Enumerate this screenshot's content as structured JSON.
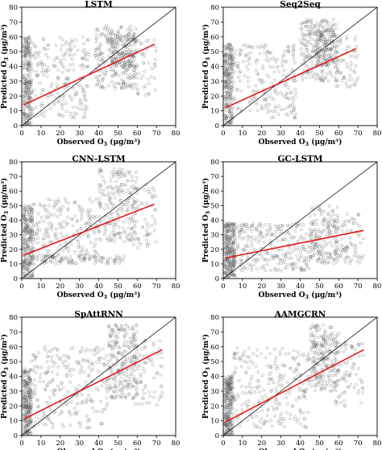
{
  "chart_data": [
    {
      "type": "scatter",
      "title": "LSTM",
      "xlabel": "Observed O",
      "ylabel": "Predicted O",
      "xlabel_sub": "3",
      "ylabel_sub": "3",
      "unit": "(μg/m³)",
      "xlim": [
        0,
        80
      ],
      "ylim": [
        0,
        80
      ],
      "xticks": [
        0,
        10,
        20,
        30,
        40,
        50,
        60,
        70,
        80
      ],
      "yticks": [
        0,
        10,
        20,
        30,
        40,
        50,
        60,
        70,
        80
      ],
      "identity_line": [
        [
          0,
          0
        ],
        [
          80,
          80
        ]
      ],
      "regression_line": [
        [
          1,
          14
        ],
        [
          69,
          55
        ]
      ],
      "regression_color": "#e31a1c",
      "point_color": "#555555",
      "scatter_clusters": [
        {
          "x": [
            0.5,
            5
          ],
          "y": [
            0,
            60
          ],
          "n": 260
        },
        {
          "x": [
            5,
            35
          ],
          "y": [
            5,
            60
          ],
          "n": 220
        },
        {
          "x": [
            38,
            60
          ],
          "y": [
            25,
            68
          ],
          "n": 240
        },
        {
          "x": [
            45,
            58
          ],
          "y": [
            40,
            62
          ],
          "n": 120
        },
        {
          "x": [
            55,
            70
          ],
          "y": [
            20,
            60
          ],
          "n": 60
        }
      ]
    },
    {
      "type": "scatter",
      "title": "Seq2Seq",
      "xlabel": "Observed O",
      "ylabel": "Predicted O",
      "xlabel_sub": "3",
      "ylabel_sub": "3",
      "unit": "(μg/m³)",
      "xlim": [
        0,
        80
      ],
      "ylim": [
        0,
        80
      ],
      "xticks": [
        0,
        10,
        20,
        30,
        40,
        50,
        60,
        70,
        80
      ],
      "yticks": [
        0,
        10,
        20,
        30,
        40,
        50,
        60,
        70,
        80
      ],
      "identity_line": [
        [
          0,
          0
        ],
        [
          80,
          80
        ]
      ],
      "regression_line": [
        [
          1,
          12
        ],
        [
          69,
          52
        ]
      ],
      "regression_color": "#e31a1c",
      "point_color": "#555555",
      "scatter_clusters": [
        {
          "x": [
            0.5,
            5
          ],
          "y": [
            0,
            55
          ],
          "n": 260
        },
        {
          "x": [
            5,
            38
          ],
          "y": [
            5,
            55
          ],
          "n": 220
        },
        {
          "x": [
            40,
            60
          ],
          "y": [
            30,
            72
          ],
          "n": 240
        },
        {
          "x": [
            48,
            58
          ],
          "y": [
            40,
            65
          ],
          "n": 120
        },
        {
          "x": [
            58,
            70
          ],
          "y": [
            25,
            60
          ],
          "n": 60
        }
      ]
    },
    {
      "type": "scatter",
      "title": "CNN-LSTM",
      "xlabel": "Observed O",
      "ylabel": "Predicted O",
      "xlabel_sub": "3",
      "ylabel_sub": "3",
      "unit": "(μg/m³)",
      "xlim": [
        0,
        80
      ],
      "ylim": [
        0,
        80
      ],
      "xticks": [
        0,
        10,
        20,
        30,
        40,
        50,
        60,
        70,
        80
      ],
      "yticks": [
        0,
        10,
        20,
        30,
        40,
        50,
        60,
        70,
        80
      ],
      "identity_line": [
        [
          0,
          0
        ],
        [
          80,
          80
        ]
      ],
      "regression_line": [
        [
          1,
          16
        ],
        [
          69,
          51
        ]
      ],
      "regression_color": "#e31a1c",
      "point_color": "#555555",
      "scatter_clusters": [
        {
          "x": [
            0.5,
            6
          ],
          "y": [
            0,
            50
          ],
          "n": 260
        },
        {
          "x": [
            5,
            40
          ],
          "y": [
            10,
            55
          ],
          "n": 240
        },
        {
          "x": [
            10,
            55
          ],
          "y": [
            10,
            16
          ],
          "n": 80
        },
        {
          "x": [
            40,
            60
          ],
          "y": [
            25,
            75
          ],
          "n": 220
        },
        {
          "x": [
            58,
            70
          ],
          "y": [
            20,
            65
          ],
          "n": 60
        }
      ]
    },
    {
      "type": "scatter",
      "title": "GC-LSTM",
      "xlabel": "Observed O",
      "ylabel": "Predicted O",
      "xlabel_sub": "3",
      "ylabel_sub": "3",
      "unit": "(μg/m³)",
      "xlim": [
        0,
        80
      ],
      "ylim": [
        0,
        80
      ],
      "xticks": [
        0,
        10,
        20,
        30,
        40,
        50,
        60,
        70,
        80
      ],
      "yticks": [
        0,
        10,
        20,
        30,
        40,
        50,
        60,
        70,
        80
      ],
      "identity_line": [
        [
          0,
          0
        ],
        [
          80,
          80
        ]
      ],
      "regression_line": [
        [
          1,
          14
        ],
        [
          73,
          33
        ]
      ],
      "regression_color": "#e31a1c",
      "point_color": "#555555",
      "scatter_clusters": [
        {
          "x": [
            0.5,
            6
          ],
          "y": [
            0,
            38
          ],
          "n": 280
        },
        {
          "x": [
            5,
            45
          ],
          "y": [
            5,
            38
          ],
          "n": 280
        },
        {
          "x": [
            45,
            60
          ],
          "y": [
            10,
            50
          ],
          "n": 180
        },
        {
          "x": [
            58,
            73
          ],
          "y": [
            10,
            45
          ],
          "n": 80
        }
      ]
    },
    {
      "type": "scatter",
      "title": "SpAttRNN",
      "xlabel": "Observed O",
      "ylabel": "Predicted O",
      "xlabel_sub": "3",
      "ylabel_sub": "3",
      "unit": "(μg/m³)",
      "xlim": [
        0,
        80
      ],
      "ylim": [
        0,
        80
      ],
      "xticks": [
        0,
        10,
        20,
        30,
        40,
        50,
        60,
        70,
        80
      ],
      "yticks": [
        0,
        10,
        20,
        30,
        40,
        50,
        60,
        70,
        80
      ],
      "identity_line": [
        [
          0,
          0
        ],
        [
          80,
          80
        ]
      ],
      "regression_line": [
        [
          1,
          11
        ],
        [
          73,
          58
        ]
      ],
      "regression_color": "#e31a1c",
      "point_color": "#555555",
      "scatter_clusters": [
        {
          "x": [
            0.5,
            5
          ],
          "y": [
            0,
            45
          ],
          "n": 260
        },
        {
          "x": [
            5,
            45
          ],
          "y": [
            5,
            60
          ],
          "n": 260
        },
        {
          "x": [
            45,
            60
          ],
          "y": [
            25,
            75
          ],
          "n": 240
        },
        {
          "x": [
            58,
            73
          ],
          "y": [
            20,
            65
          ],
          "n": 80
        }
      ]
    },
    {
      "type": "scatter",
      "title": "AAMGCRN",
      "xlabel": "Observed O",
      "ylabel": "Predicted O",
      "xlabel_sub": "3",
      "ylabel_sub": "3",
      "unit": "(μg/m³)",
      "xlim": [
        0,
        80
      ],
      "ylim": [
        0,
        80
      ],
      "xticks": [
        0,
        10,
        20,
        30,
        40,
        50,
        60,
        70,
        80
      ],
      "yticks": [
        0,
        10,
        20,
        30,
        40,
        50,
        60,
        70,
        80
      ],
      "identity_line": [
        [
          0,
          0
        ],
        [
          80,
          80
        ]
      ],
      "regression_line": [
        [
          1,
          9
        ],
        [
          73,
          58
        ]
      ],
      "regression_color": "#e31a1c",
      "point_color": "#555555",
      "scatter_clusters": [
        {
          "x": [
            0.5,
            5
          ],
          "y": [
            0,
            40
          ],
          "n": 260
        },
        {
          "x": [
            5,
            45
          ],
          "y": [
            5,
            60
          ],
          "n": 260
        },
        {
          "x": [
            45,
            60
          ],
          "y": [
            30,
            75
          ],
          "n": 240
        },
        {
          "x": [
            58,
            73
          ],
          "y": [
            20,
            65
          ],
          "n": 80
        }
      ]
    }
  ]
}
